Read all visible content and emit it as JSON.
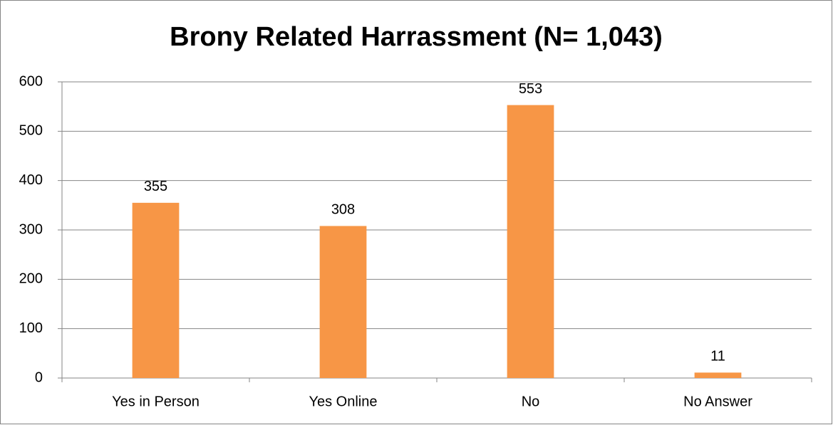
{
  "chart_data": {
    "type": "bar",
    "title": "Brony Related Harrassment (N= 1,043)",
    "categories": [
      "Yes in Person",
      "Yes Online",
      "No",
      "No Answer"
    ],
    "values": [
      355,
      308,
      553,
      11
    ],
    "color": "#f79646",
    "ylim": [
      0,
      600
    ],
    "yticks": [
      0,
      100,
      200,
      300,
      400,
      500,
      600
    ],
    "grid": true
  }
}
